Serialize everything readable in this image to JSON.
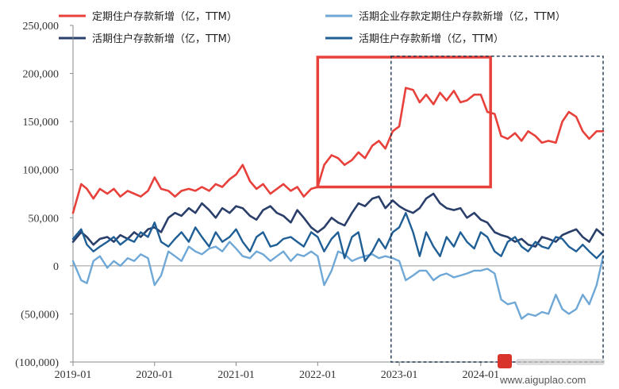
{
  "chart_data": {
    "type": "line",
    "title": "",
    "xlabel": "",
    "ylabel": "",
    "ylim": [
      -100000,
      250000
    ],
    "y_ticks": [
      {
        "value": 250000,
        "label": "250,000"
      },
      {
        "value": 200000,
        "label": "200,000"
      },
      {
        "value": 150000,
        "label": "150,000"
      },
      {
        "value": 100000,
        "label": "100,000"
      },
      {
        "value": 50000,
        "label": "50,000"
      },
      {
        "value": 0,
        "label": "0"
      },
      {
        "value": -50000,
        "label": "(50,000)"
      },
      {
        "value": -100000,
        "label": "(100,000)"
      }
    ],
    "negative_tick_color": "#c0392b",
    "x_ticks": [
      {
        "value": 2019.0,
        "label": "2019-01"
      },
      {
        "value": 2020.0,
        "label": "2020-01"
      },
      {
        "value": 2021.0,
        "label": "2021-01"
      },
      {
        "value": 2022.0,
        "label": "2022-01"
      },
      {
        "value": 2023.0,
        "label": "2023-01"
      },
      {
        "value": 2024.0,
        "label": "2024-01"
      }
    ],
    "grid": false,
    "legend_position": "top",
    "series": [
      {
        "name": "定期住户存款新增（亿，TTM）",
        "color": "#e8403a",
        "width": 2.6,
        "x": [
          2019.0,
          2019.1,
          2019.17,
          2019.25,
          2019.33,
          2019.42,
          2019.5,
          2019.58,
          2019.67,
          2019.75,
          2019.83,
          2019.92,
          2020.0,
          2020.08,
          2020.17,
          2020.25,
          2020.33,
          2020.42,
          2020.5,
          2020.58,
          2020.67,
          2020.75,
          2020.83,
          2020.92,
          2021.0,
          2021.08,
          2021.17,
          2021.25,
          2021.33,
          2021.42,
          2021.5,
          2021.58,
          2021.67,
          2021.75,
          2021.83,
          2021.92,
          2022.0,
          2022.08,
          2022.17,
          2022.25,
          2022.33,
          2022.42,
          2022.5,
          2022.58,
          2022.67,
          2022.75,
          2022.83,
          2022.92,
          2023.0,
          2023.08,
          2023.17,
          2023.25,
          2023.33,
          2023.42,
          2023.5,
          2023.58,
          2023.67,
          2023.75,
          2023.83,
          2023.92,
          2024.0,
          2024.08,
          2024.17,
          2024.25,
          2024.33,
          2024.42,
          2024.5,
          2024.58,
          2024.67,
          2024.75,
          2024.83,
          2024.92,
          2025.0,
          2025.08,
          2025.17,
          2025.25,
          2025.33,
          2025.42,
          2025.5
        ],
        "y": [
          55000,
          85000,
          80000,
          70000,
          80000,
          75000,
          80000,
          72000,
          78000,
          75000,
          72000,
          78000,
          92000,
          80000,
          78000,
          72000,
          78000,
          80000,
          78000,
          82000,
          78000,
          85000,
          82000,
          90000,
          95000,
          105000,
          88000,
          80000,
          85000,
          75000,
          80000,
          85000,
          78000,
          82000,
          72000,
          80000,
          82000,
          105000,
          115000,
          112000,
          105000,
          110000,
          118000,
          112000,
          125000,
          130000,
          122000,
          140000,
          145000,
          185000,
          183000,
          170000,
          178000,
          168000,
          180000,
          172000,
          182000,
          170000,
          172000,
          178000,
          178000,
          160000,
          158000,
          135000,
          132000,
          138000,
          130000,
          140000,
          135000,
          128000,
          130000,
          128000,
          150000,
          160000,
          155000,
          140000,
          132000,
          140000,
          140000
        ]
      },
      {
        "name": "活期住户存款新增（亿，TTM）",
        "color": "#2b3f6b",
        "width": 2.6,
        "x": [
          2019.0,
          2019.1,
          2019.17,
          2019.25,
          2019.33,
          2019.42,
          2019.5,
          2019.58,
          2019.67,
          2019.75,
          2019.83,
          2019.92,
          2020.0,
          2020.08,
          2020.17,
          2020.25,
          2020.33,
          2020.42,
          2020.5,
          2020.58,
          2020.67,
          2020.75,
          2020.83,
          2020.92,
          2021.0,
          2021.08,
          2021.17,
          2021.25,
          2021.33,
          2021.42,
          2021.5,
          2021.58,
          2021.67,
          2021.75,
          2021.83,
          2021.92,
          2022.0,
          2022.08,
          2022.17,
          2022.25,
          2022.33,
          2022.42,
          2022.5,
          2022.58,
          2022.67,
          2022.75,
          2022.83,
          2022.92,
          2023.0,
          2023.08,
          2023.17,
          2023.25,
          2023.33,
          2023.42,
          2023.5,
          2023.58,
          2023.67,
          2023.75,
          2023.83,
          2023.92,
          2024.0,
          2024.08,
          2024.17,
          2024.25,
          2024.33,
          2024.42,
          2024.5,
          2024.58,
          2024.67,
          2024.75,
          2024.83,
          2024.92,
          2025.0,
          2025.08,
          2025.17,
          2025.25,
          2025.33,
          2025.42,
          2025.5
        ],
        "y": [
          25000,
          35000,
          30000,
          22000,
          28000,
          30000,
          25000,
          32000,
          28000,
          35000,
          30000,
          38000,
          40000,
          35000,
          50000,
          55000,
          52000,
          60000,
          55000,
          65000,
          58000,
          50000,
          60000,
          55000,
          62000,
          60000,
          52000,
          48000,
          58000,
          62000,
          55000,
          52000,
          45000,
          58000,
          50000,
          40000,
          35000,
          40000,
          50000,
          45000,
          42000,
          55000,
          65000,
          62000,
          70000,
          72000,
          60000,
          68000,
          62000,
          58000,
          55000,
          60000,
          70000,
          75000,
          65000,
          60000,
          58000,
          60000,
          50000,
          55000,
          48000,
          45000,
          35000,
          32000,
          30000,
          25000,
          28000,
          22000,
          20000,
          30000,
          28000,
          25000,
          32000,
          35000,
          38000,
          30000,
          25000,
          38000,
          32000
        ]
      },
      {
        "name": "活期企业存款定期住户存款新增（亿，TTM）",
        "color": "#6fa8d6",
        "width": 2.4,
        "x": [
          2019.0,
          2019.1,
          2019.17,
          2019.25,
          2019.33,
          2019.42,
          2019.5,
          2019.58,
          2019.67,
          2019.75,
          2019.83,
          2019.92,
          2020.0,
          2020.08,
          2020.17,
          2020.25,
          2020.33,
          2020.42,
          2020.5,
          2020.58,
          2020.67,
          2020.75,
          2020.83,
          2020.92,
          2021.0,
          2021.08,
          2021.17,
          2021.25,
          2021.33,
          2021.42,
          2021.5,
          2021.58,
          2021.67,
          2021.75,
          2021.83,
          2021.92,
          2022.0,
          2022.08,
          2022.17,
          2022.25,
          2022.33,
          2022.42,
          2022.5,
          2022.58,
          2022.67,
          2022.75,
          2022.83,
          2022.92,
          2023.0,
          2023.08,
          2023.17,
          2023.25,
          2023.33,
          2023.42,
          2023.5,
          2023.58,
          2023.67,
          2023.75,
          2023.83,
          2023.92,
          2024.0,
          2024.08,
          2024.17,
          2024.25,
          2024.33,
          2024.42,
          2024.5,
          2024.58,
          2024.67,
          2024.75,
          2024.83,
          2024.92,
          2025.0,
          2025.08,
          2025.17,
          2025.25,
          2025.33,
          2025.42,
          2025.5
        ],
        "y": [
          5000,
          -15000,
          -18000,
          5000,
          10000,
          -2000,
          5000,
          0,
          8000,
          5000,
          12000,
          8000,
          -20000,
          -10000,
          15000,
          10000,
          5000,
          20000,
          15000,
          12000,
          18000,
          20000,
          15000,
          25000,
          18000,
          10000,
          8000,
          15000,
          12000,
          5000,
          10000,
          15000,
          5000,
          12000,
          10000,
          15000,
          10000,
          -20000,
          -5000,
          15000,
          12000,
          5000,
          8000,
          10000,
          12000,
          8000,
          10000,
          8000,
          5000,
          -15000,
          -10000,
          -5000,
          -5000,
          -15000,
          -10000,
          -8000,
          -12000,
          -10000,
          -8000,
          -5000,
          -5000,
          -3000,
          -8000,
          -35000,
          -40000,
          -38000,
          -55000,
          -50000,
          -52000,
          -48000,
          -50000,
          -30000,
          -45000,
          -50000,
          -45000,
          -30000,
          -40000,
          -20000,
          10000
        ]
      },
      {
        "name": "活期住户存款新增（亿，TTM）",
        "color": "#1f5f96",
        "width": 2.4,
        "x": [
          2019.0,
          2019.1,
          2019.17,
          2019.25,
          2019.33,
          2019.42,
          2019.5,
          2019.58,
          2019.67,
          2019.75,
          2019.83,
          2019.92,
          2020.0,
          2020.08,
          2020.17,
          2020.25,
          2020.33,
          2020.42,
          2020.5,
          2020.58,
          2020.67,
          2020.75,
          2020.83,
          2020.92,
          2021.0,
          2021.08,
          2021.17,
          2021.25,
          2021.33,
          2021.42,
          2021.5,
          2021.58,
          2021.67,
          2021.75,
          2021.83,
          2021.92,
          2022.0,
          2022.08,
          2022.17,
          2022.25,
          2022.33,
          2022.42,
          2022.5,
          2022.58,
          2022.67,
          2022.75,
          2022.83,
          2022.92,
          2023.0,
          2023.08,
          2023.17,
          2023.25,
          2023.33,
          2023.42,
          2023.5,
          2023.58,
          2023.67,
          2023.75,
          2023.83,
          2023.92,
          2024.0,
          2024.08,
          2024.17,
          2024.25,
          2024.33,
          2024.42,
          2024.5,
          2024.58,
          2024.67,
          2024.75,
          2024.83,
          2024.92,
          2025.0,
          2025.08,
          2025.17,
          2025.25,
          2025.33,
          2025.42,
          2025.5
        ],
        "y": [
          28000,
          38000,
          22000,
          15000,
          20000,
          25000,
          30000,
          22000,
          28000,
          25000,
          35000,
          30000,
          45000,
          25000,
          20000,
          28000,
          35000,
          25000,
          40000,
          30000,
          20000,
          35000,
          25000,
          30000,
          38000,
          25000,
          15000,
          30000,
          35000,
          20000,
          22000,
          28000,
          30000,
          25000,
          20000,
          35000,
          30000,
          15000,
          28000,
          35000,
          8000,
          30000,
          35000,
          5000,
          15000,
          28000,
          18000,
          35000,
          40000,
          55000,
          35000,
          10000,
          35000,
          20000,
          10000,
          30000,
          20000,
          35000,
          25000,
          18000,
          35000,
          30000,
          15000,
          10000,
          25000,
          30000,
          20000,
          15000,
          25000,
          20000,
          18000,
          30000,
          28000,
          20000,
          15000,
          22000,
          15000,
          8000,
          15000
        ]
      }
    ],
    "annotations": [
      {
        "kind": "highlight-box",
        "x_range": [
          2022.0,
          2024.12
        ],
        "y_range": [
          82000,
          217000
        ],
        "color": "#e8403a"
      },
      {
        "kind": "dashed-box",
        "x_range": [
          2022.9,
          2025.5
        ],
        "y_range": [
          -100000,
          218000
        ],
        "color": "#1f3550"
      }
    ]
  }
}
